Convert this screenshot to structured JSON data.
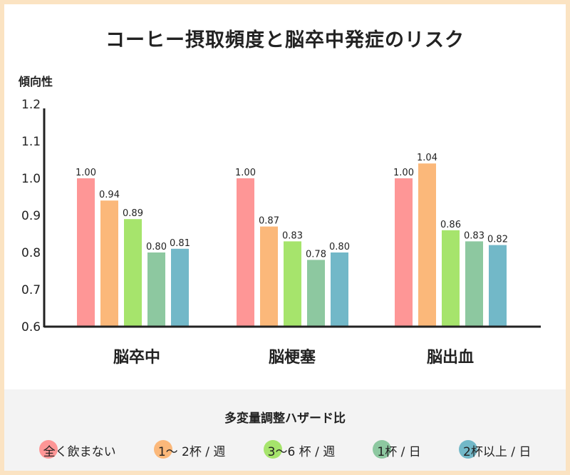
{
  "title": "コーヒー摂取頻度と脳卒中発症のリスク",
  "y_axis_title": "傾向性",
  "legend_title": "多変量調整ハザード比",
  "chart_data": {
    "type": "bar",
    "title": "コーヒー摂取頻度と脳卒中発症のリスク",
    "ylabel": "傾向性",
    "ylim": [
      0.6,
      1.2
    ],
    "yticks": [
      "0.6",
      "0.7",
      "0.8",
      "0.9",
      "1.0",
      "1.1",
      "1.2"
    ],
    "categories": [
      "脳卒中",
      "脳梗塞",
      "脳出血"
    ],
    "series": [
      {
        "name": "全く飲まない",
        "color": "#fe9696",
        "values": [
          1.0,
          1.0,
          1.0
        ],
        "labels": [
          "1.00",
          "1.00",
          "1.00"
        ]
      },
      {
        "name": "1〜 2杯 / 週",
        "color": "#fbb87a",
        "values": [
          0.94,
          0.87,
          1.04
        ],
        "labels": [
          "0.94",
          "0.87",
          "1.04"
        ]
      },
      {
        "name": "3〜6 杯 / 週",
        "color": "#a6e46c",
        "values": [
          0.89,
          0.83,
          0.86
        ],
        "labels": [
          "0.89",
          "0.83",
          "0.86"
        ]
      },
      {
        "name": "1杯 / 日",
        "color": "#8dc8a0",
        "values": [
          0.8,
          0.78,
          0.83
        ],
        "labels": [
          "0.80",
          "0.78",
          "0.83"
        ]
      },
      {
        "name": "2杯以上 / 日",
        "color": "#72b8c8",
        "values": [
          0.81,
          0.8,
          0.82
        ],
        "labels": [
          "0.81",
          "0.80",
          "0.82"
        ]
      }
    ],
    "grid": false,
    "legend_position": "bottom"
  }
}
